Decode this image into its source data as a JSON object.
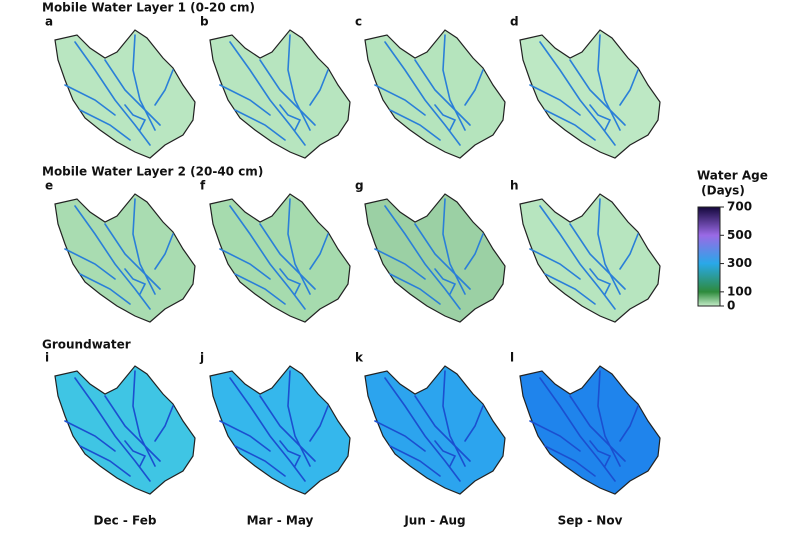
{
  "rows": [
    {
      "title": "Mobile Water Layer 1  (0-20 cm)",
      "panels": [
        {
          "letter": "a",
          "color": "#b9e6c1"
        },
        {
          "letter": "b",
          "color": "#b7e5bf"
        },
        {
          "letter": "c",
          "color": "#b5e4bd"
        },
        {
          "letter": "d",
          "color": "#bde8c4"
        }
      ]
    },
    {
      "title": "Mobile Water Layer 2  (20-40 cm)",
      "panels": [
        {
          "letter": "e",
          "color": "#a9dcb1"
        },
        {
          "letter": "f",
          "color": "#a6dbae"
        },
        {
          "letter": "g",
          "color": "#9bd0a4"
        },
        {
          "letter": "h",
          "color": "#b7e5bf"
        }
      ]
    },
    {
      "title": "Groundwater",
      "panels": [
        {
          "letter": "i",
          "color": "#3fc5e4"
        },
        {
          "letter": "j",
          "color": "#35b7ec"
        },
        {
          "letter": "k",
          "color": "#2ca4ee"
        },
        {
          "letter": "l",
          "color": "#1f84ec"
        }
      ]
    }
  ],
  "columns": [
    "Dec - Feb",
    "Mar - May",
    "Jun - Aug",
    "Sep - Nov"
  ],
  "colorbar": {
    "title_lines": [
      "Water Age",
      " (Days)"
    ],
    "lim": [
      0,
      700
    ],
    "ticks": [
      700,
      500,
      300,
      100,
      0
    ],
    "colors": [
      "#14083c",
      "#9a6ae6",
      "#29a8e8",
      "#2e8b3c",
      "#c4ecc8"
    ]
  }
}
